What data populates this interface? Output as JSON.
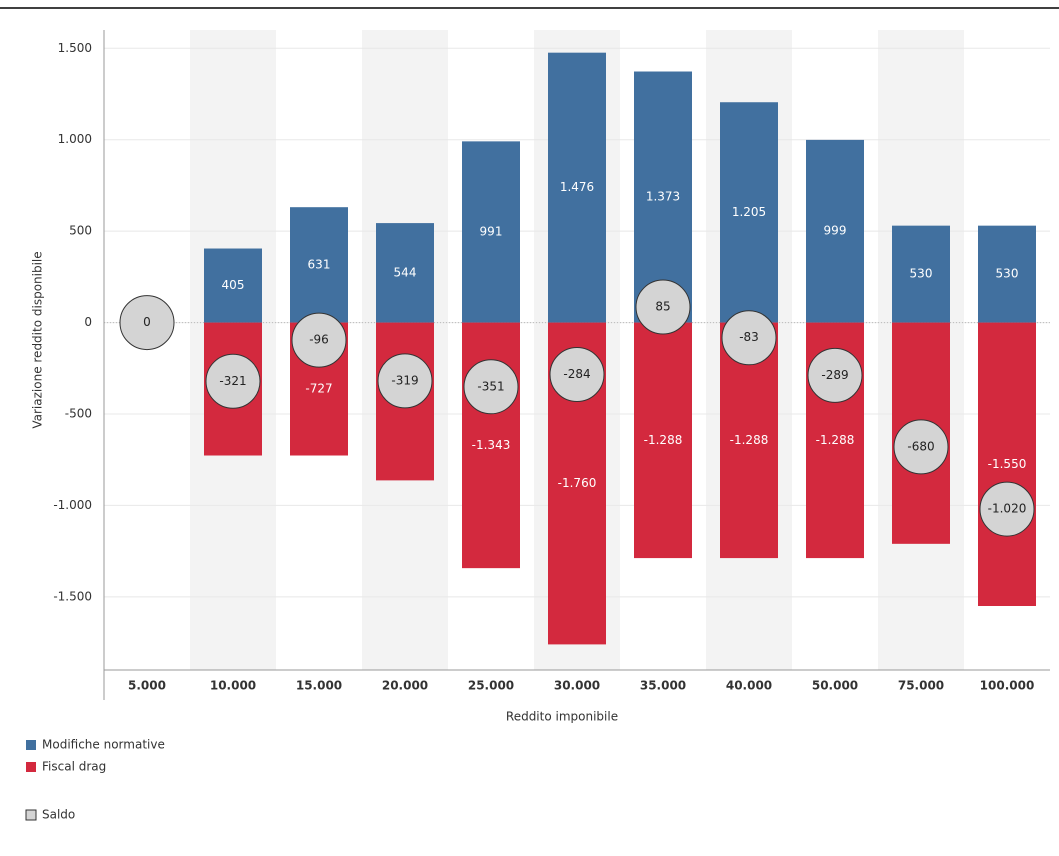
{
  "chart_data": {
    "type": "bar",
    "x_label": "Reddito imponibile",
    "y_label": "Variazione reddito disponibile",
    "categories": [
      "5.000",
      "10.000",
      "15.000",
      "20.000",
      "25.000",
      "30.000",
      "35.000",
      "40.000",
      "50.000",
      "75.000",
      "100.000"
    ],
    "ylim": [
      -1900,
      1600
    ],
    "yticks": [
      {
        "value": 1500,
        "label": "1.500"
      },
      {
        "value": 1000,
        "label": "1.000"
      },
      500,
      0,
      -500,
      {
        "value": -1000,
        "label": "-1.000"
      },
      {
        "value": -1500,
        "label": "-1.500"
      }
    ],
    "band_shading": true,
    "series": [
      {
        "name": "Modifiche normative",
        "color": "#41709f",
        "style": "bar",
        "values": [
          null,
          405,
          631,
          544,
          991,
          1476,
          1373,
          1205,
          999,
          530,
          530
        ],
        "value_labels": [
          null,
          "405",
          "631",
          "544",
          "991",
          "1.476",
          "1.373",
          "1.205",
          "999",
          "530",
          "530"
        ]
      },
      {
        "name": "Fiscal drag",
        "color": "#d3293e",
        "style": "bar",
        "values": [
          null,
          -727,
          -727,
          -863,
          -1343,
          -1760,
          -1288,
          -1288,
          -1288,
          -1210,
          -1550
        ],
        "value_labels": [
          null,
          "-727",
          "-727",
          "-863",
          "-1.343",
          "-1.760",
          "-1.288",
          "-1.288",
          "-1.288",
          "-1.210",
          "-1.550"
        ]
      },
      {
        "name": "Saldo",
        "color": "#d4d4d4",
        "style": "circle",
        "values": [
          0,
          -321,
          -96,
          -319,
          -351,
          -284,
          85,
          -83,
          -289,
          -680,
          -1020
        ],
        "value_labels": [
          "0",
          "-321",
          "-96",
          "-319",
          "-351",
          "-284",
          "85",
          "-83",
          "-289",
          "-680",
          "-1.020"
        ]
      }
    ]
  }
}
